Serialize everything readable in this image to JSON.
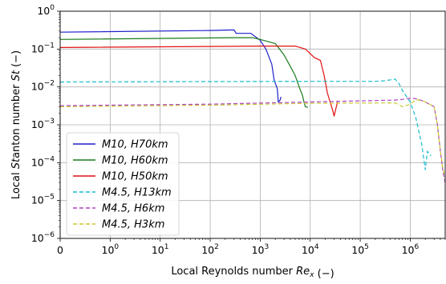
{
  "chart_data": {
    "type": "line",
    "x_scale": "symlog",
    "y_scale": "log",
    "xlabel": "Local Reynolds number Re_x (−)",
    "ylabel": "Local Stanton number St (−)",
    "xlim": [
      0,
      5000000
    ],
    "ylim": [
      1e-06,
      1
    ],
    "grid": true,
    "legend_position": "bottom-left",
    "x_ticks": [
      {
        "value": 0,
        "label": "0"
      },
      {
        "value": 1,
        "base": "10",
        "exp": "0"
      },
      {
        "value": 10,
        "base": "10",
        "exp": "1"
      },
      {
        "value": 100,
        "base": "10",
        "exp": "2"
      },
      {
        "value": 1000,
        "base": "10",
        "exp": "3"
      },
      {
        "value": 10000,
        "base": "10",
        "exp": "4"
      },
      {
        "value": 100000,
        "base": "10",
        "exp": "5"
      },
      {
        "value": 1000000,
        "base": "10",
        "exp": "6"
      }
    ],
    "y_ticks": [
      {
        "value": 1e-06,
        "base": "10",
        "exp": "−6"
      },
      {
        "value": 1e-05,
        "base": "10",
        "exp": "−5"
      },
      {
        "value": 0.0001,
        "base": "10",
        "exp": "−4"
      },
      {
        "value": 0.001,
        "base": "10",
        "exp": "−3"
      },
      {
        "value": 0.01,
        "base": "10",
        "exp": "−2"
      },
      {
        "value": 0.1,
        "base": "10",
        "exp": "−1"
      },
      {
        "value": 1,
        "base": "10",
        "exp": "0"
      }
    ],
    "series": [
      {
        "name": "M10, H70km",
        "color": "#1f1fcc",
        "dash": "solid",
        "x": [
          0,
          100,
          300,
          330,
          650,
          1000,
          1300,
          1700,
          1900,
          2200,
          2300,
          2500,
          2600
        ],
        "y": [
          0.28,
          0.31,
          0.32,
          0.26,
          0.26,
          0.17,
          0.1,
          0.04,
          0.015,
          0.009,
          0.004,
          0.0045,
          0.0055
        ]
      },
      {
        "name": "M10, H60km",
        "color": "#1a7a1a",
        "dash": "solid",
        "x": [
          0,
          300,
          700,
          1000,
          2000,
          3000,
          4000,
          5000,
          6000,
          7000,
          7500,
          8000,
          9000
        ],
        "y": [
          0.18,
          0.2,
          0.2,
          0.18,
          0.14,
          0.07,
          0.035,
          0.02,
          0.01,
          0.006,
          0.004,
          0.003,
          0.0029
        ]
      },
      {
        "name": "M10, H50km",
        "color": "#e01010",
        "dash": "solid",
        "x": [
          0,
          1000,
          3000,
          5000,
          8000,
          12000,
          16000,
          19000,
          22000,
          25000,
          28000,
          30000,
          35000
        ],
        "y": [
          0.11,
          0.12,
          0.12,
          0.12,
          0.1,
          0.06,
          0.05,
          0.02,
          0.007,
          0.004,
          0.0025,
          0.0017,
          0.004
        ]
      },
      {
        "name": "M4.5, H13km",
        "color": "#17becf",
        "dash": "dashed",
        "x": [
          0,
          100,
          10000,
          200000,
          300000,
          500000,
          600000,
          700000,
          1000000,
          1300000,
          1700000,
          2000000,
          2200000,
          2600000
        ],
        "y": [
          0.0135,
          0.0138,
          0.014,
          0.014,
          0.0145,
          0.016,
          0.012,
          0.008,
          0.004,
          0.0015,
          0.0003,
          6.5e-05,
          0.0002,
          0.00015
        ]
      },
      {
        "name": "M4.5, H6km",
        "color": "#b040c0",
        "dash": "dashed",
        "x": [
          0,
          100,
          10000,
          500000,
          800000,
          1000000,
          1300000,
          1600000,
          2000000,
          3000000,
          3500000,
          4000000,
          4500000,
          5000000
        ],
        "y": [
          0.0032,
          0.0035,
          0.004,
          0.0045,
          0.0048,
          0.005,
          0.0049,
          0.0045,
          0.004,
          0.003,
          0.001,
          0.0002,
          6e-05,
          3e-05
        ]
      },
      {
        "name": "M4.5, H3km",
        "color": "#c8c832",
        "dash": "dashed",
        "x": [
          0,
          100,
          10000,
          500000,
          700000,
          1000000,
          1300000,
          1600000,
          2000000,
          3000000,
          3500000,
          4000000,
          4500000,
          5000000
        ],
        "y": [
          0.003,
          0.0033,
          0.0037,
          0.0038,
          0.003,
          0.0035,
          0.0046,
          0.0044,
          0.004,
          0.003,
          0.001,
          0.0002,
          7e-05,
          4e-05
        ]
      }
    ]
  }
}
